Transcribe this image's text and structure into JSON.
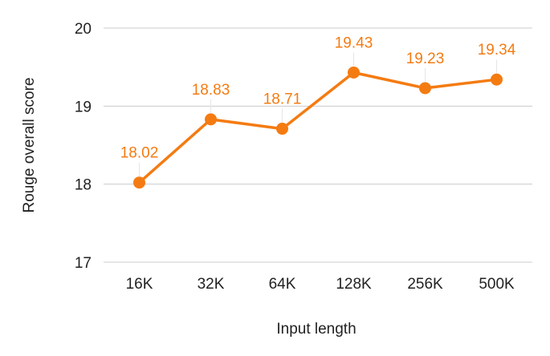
{
  "chart_data": {
    "type": "line",
    "title": "",
    "xlabel": "Input length",
    "ylabel": "Rouge overall score",
    "categories": [
      "16K",
      "32K",
      "64K",
      "128K",
      "256K",
      "500K"
    ],
    "series": [
      {
        "values": [
          18.02,
          18.83,
          18.71,
          19.43,
          19.23,
          19.34
        ],
        "labels": [
          "18.02",
          "18.83",
          "18.71",
          "19.43",
          "19.23",
          "19.34"
        ],
        "color": "#f47b12"
      }
    ],
    "ylim": [
      17,
      20
    ],
    "yticks": [
      {
        "value": 17,
        "label": "17"
      },
      {
        "value": 18,
        "label": "18"
      },
      {
        "value": 19,
        "label": "19"
      },
      {
        "value": 20,
        "label": "20"
      }
    ],
    "grid": true,
    "legend": "none",
    "colors": {
      "grid": "#cccccc",
      "axis_text": "#222222",
      "leader": "#e6e6e6"
    }
  }
}
